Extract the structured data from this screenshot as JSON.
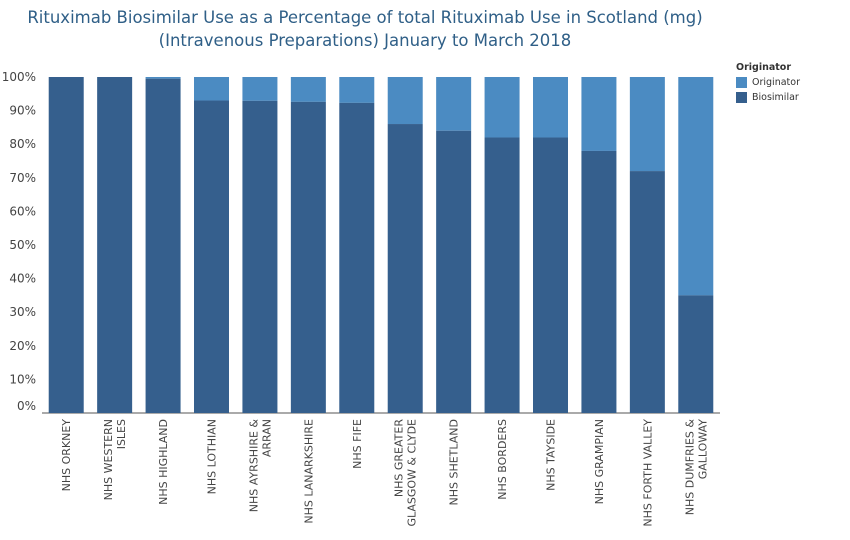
{
  "chart_data": {
    "type": "bar",
    "stacked": true,
    "title_line1": "Rituximab Biosimilar Use as a Percentage of total Rituximab Use in Scotland (mg)",
    "title_line2": "(Intravenous Preparations) January to March 2018",
    "categories": [
      [
        "NHS ORKNEY"
      ],
      [
        "NHS WESTERN",
        "ISLES"
      ],
      [
        "NHS HIGHLAND"
      ],
      [
        "NHS LOTHIAN"
      ],
      [
        "NHS AYRSHIRE &",
        "ARRAN"
      ],
      [
        "NHS LANARKSHIRE"
      ],
      [
        "NHS FIFE"
      ],
      [
        "NHS GREATER",
        "GLASGOW & CLYDE"
      ],
      [
        "NHS SHETLAND"
      ],
      [
        "NHS BORDERS"
      ],
      [
        "NHS TAYSIDE"
      ],
      [
        "NHS GRAMPIAN"
      ],
      [
        "NHS FORTH VALLEY"
      ],
      [
        "NHS DUMFRIES &",
        "GALLOWAY"
      ]
    ],
    "series": [
      {
        "name": "Biosimilar",
        "color": "#355f8d",
        "values": [
          100,
          100,
          99.5,
          93,
          92.9,
          92.6,
          92.3,
          86,
          84,
          82,
          82,
          78,
          72,
          35
        ]
      },
      {
        "name": "Originator",
        "color": "#4b8bc2",
        "values": [
          0,
          0,
          0.5,
          7,
          7.1,
          7.4,
          7.7,
          14,
          16,
          18,
          18,
          22,
          28,
          65
        ]
      }
    ],
    "ylim": [
      0,
      100
    ],
    "yticks": [
      "0%",
      "10%",
      "20%",
      "30%",
      "40%",
      "50%",
      "60%",
      "70%",
      "80%",
      "90%",
      "100%"
    ],
    "legend": {
      "title": "Originator",
      "position": "right"
    }
  }
}
